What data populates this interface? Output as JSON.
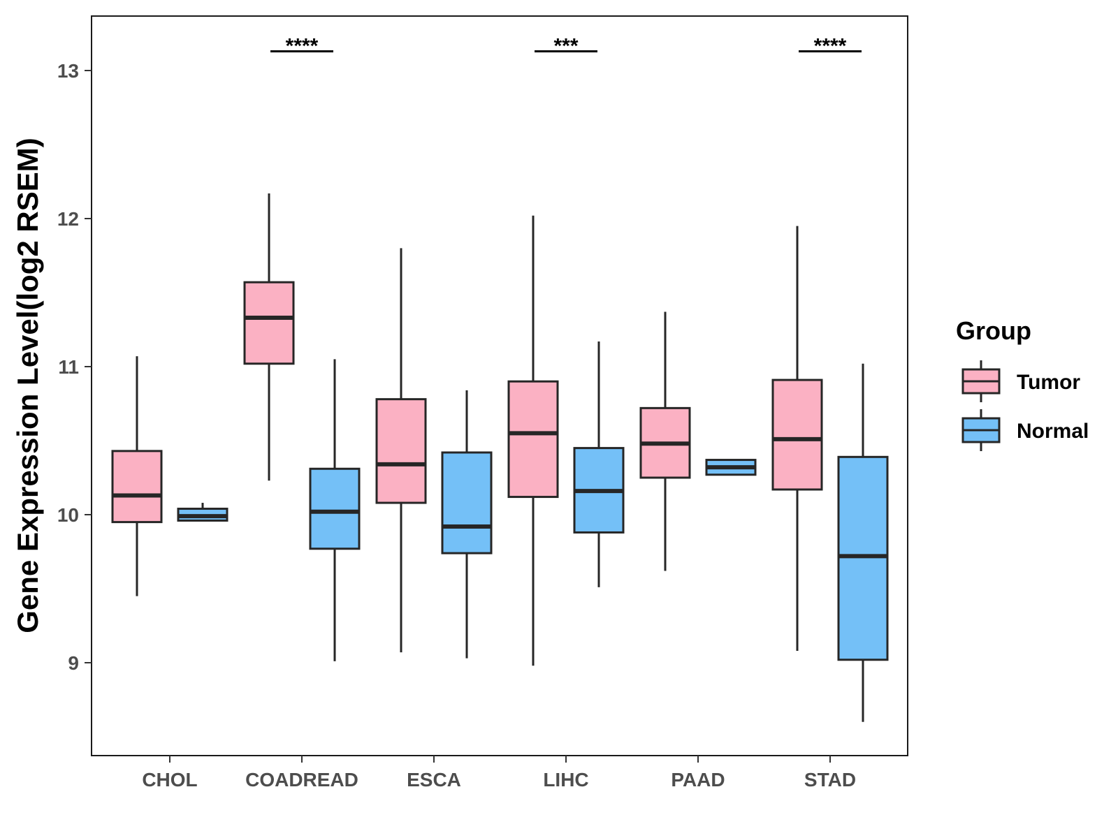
{
  "chart_data": {
    "type": "boxplot",
    "title": "",
    "xlabel": "",
    "ylabel": "Gene Expression Level(log2 RSEM)",
    "ylim": [
      8.4,
      13.4
    ],
    "yticks": [
      9,
      10,
      11,
      12,
      13
    ],
    "ytick_labels": [
      "9",
      "10",
      "11",
      "12",
      "13"
    ],
    "categories": [
      "CHOL",
      "COADREAD",
      "ESCA",
      "LIHC",
      "PAAD",
      "STAD"
    ],
    "legend": {
      "title": "Group",
      "position": "right",
      "entries": [
        {
          "name": "Tumor",
          "color": "#FBB1C3"
        },
        {
          "name": "Normal",
          "color": "#74C0F7"
        }
      ]
    },
    "series": [
      {
        "name": "Tumor",
        "color": "#FBB1C3",
        "boxes": [
          {
            "category": "CHOL",
            "whisker_low": 9.45,
            "q1": 9.95,
            "median": 10.13,
            "q3": 10.43,
            "whisker_high": 11.07
          },
          {
            "category": "COADREAD",
            "whisker_low": 10.23,
            "q1": 11.02,
            "median": 11.33,
            "q3": 11.57,
            "whisker_high": 12.17
          },
          {
            "category": "ESCA",
            "whisker_low": 9.07,
            "q1": 10.08,
            "median": 10.34,
            "q3": 10.78,
            "whisker_high": 11.8
          },
          {
            "category": "LIHC",
            "whisker_low": 8.98,
            "q1": 10.12,
            "median": 10.55,
            "q3": 10.9,
            "whisker_high": 12.02
          },
          {
            "category": "PAAD",
            "whisker_low": 9.62,
            "q1": 10.25,
            "median": 10.48,
            "q3": 10.72,
            "whisker_high": 11.37
          },
          {
            "category": "STAD",
            "whisker_low": 9.08,
            "q1": 10.17,
            "median": 10.51,
            "q3": 10.91,
            "whisker_high": 11.95
          }
        ]
      },
      {
        "name": "Normal",
        "color": "#74C0F7",
        "boxes": [
          {
            "category": "CHOL",
            "whisker_low": 9.96,
            "q1": 9.96,
            "median": 9.99,
            "q3": 10.04,
            "whisker_high": 10.08
          },
          {
            "category": "COADREAD",
            "whisker_low": 9.01,
            "q1": 9.77,
            "median": 10.02,
            "q3": 10.31,
            "whisker_high": 11.05
          },
          {
            "category": "ESCA",
            "whisker_low": 9.03,
            "q1": 9.74,
            "median": 9.92,
            "q3": 10.42,
            "whisker_high": 10.84
          },
          {
            "category": "LIHC",
            "whisker_low": 9.51,
            "q1": 9.88,
            "median": 10.16,
            "q3": 10.45,
            "whisker_high": 11.17
          },
          {
            "category": "PAAD",
            "whisker_low": 10.27,
            "q1": 10.27,
            "median": 10.32,
            "q3": 10.37,
            "whisker_high": 10.37
          },
          {
            "category": "STAD",
            "whisker_low": 8.6,
            "q1": 9.02,
            "median": 9.72,
            "q3": 10.39,
            "whisker_high": 11.02
          }
        ]
      }
    ],
    "annotations": [
      {
        "category": "COADREAD",
        "label": "****",
        "y": 13.13
      },
      {
        "category": "LIHC",
        "label": "***",
        "y": 13.13
      },
      {
        "category": "STAD",
        "label": "****",
        "y": 13.13
      }
    ]
  }
}
